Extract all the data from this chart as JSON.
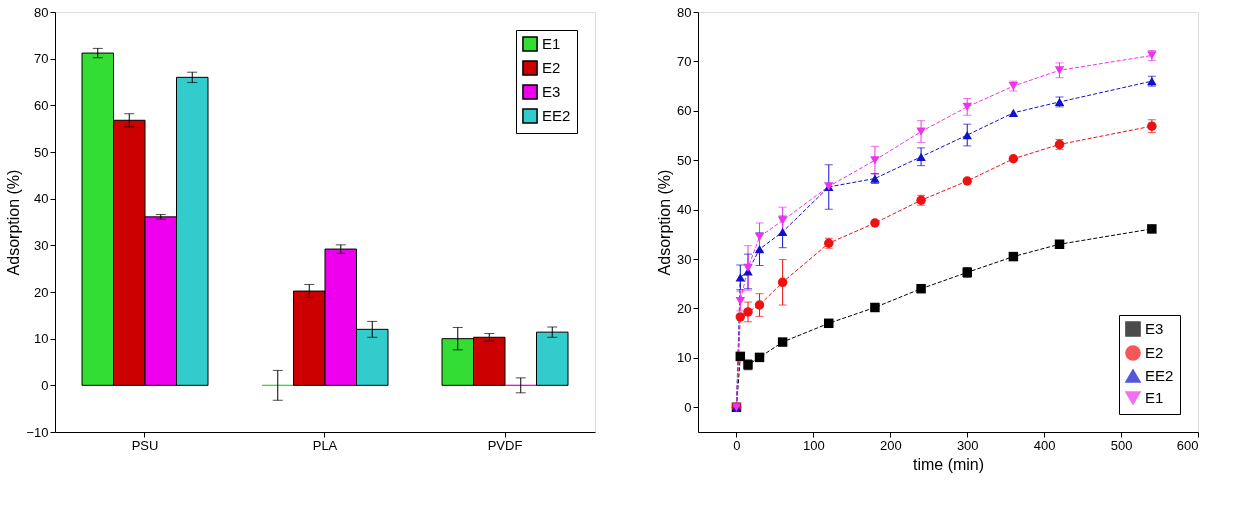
{
  "chart_data": [
    {
      "type": "bar",
      "ylabel": "Adsorption (%)",
      "categories": [
        "PSU",
        "PLA",
        "PVDF"
      ],
      "ylim": [
        -10,
        80
      ],
      "yticks": [
        -10,
        0,
        10,
        20,
        30,
        40,
        50,
        60,
        70,
        80
      ],
      "grid": false,
      "legend": "top right",
      "series": [
        {
          "name": "E1",
          "color": "#33dd33",
          "values": [
            71.2,
            0,
            10
          ],
          "errors": [
            1,
            3.2,
            2.4
          ]
        },
        {
          "name": "E2",
          "color": "#cc0000",
          "values": [
            56.8,
            20.2,
            10.3
          ],
          "errors": [
            1.4,
            1.4,
            0.8
          ]
        },
        {
          "name": "E3",
          "color": "#ee00ee",
          "values": [
            36.1,
            29.2,
            0
          ],
          "errors": [
            0.5,
            0.9,
            1.6
          ]
        },
        {
          "name": "EE2",
          "color": "#33cccc",
          "values": [
            66,
            12,
            11.4
          ],
          "errors": [
            1.1,
            1.7,
            1.1
          ]
        }
      ]
    },
    {
      "type": "line",
      "xlabel": "time (min)",
      "ylabel": "Adsorption (%)",
      "x": [
        0,
        5,
        15,
        30,
        60,
        120,
        180,
        240,
        300,
        360,
        420,
        540
      ],
      "xlim": [
        -50,
        600
      ],
      "xticks": [
        0,
        100,
        200,
        300,
        400,
        500,
        600
      ],
      "ylim": [
        -5,
        80
      ],
      "yticks": [
        0,
        10,
        20,
        30,
        40,
        50,
        60,
        70,
        80
      ],
      "grid": false,
      "legend": "bottom right",
      "line_style": "dashed",
      "series": [
        {
          "name": "E3",
          "color": "#000000",
          "marker": "square",
          "values": [
            0,
            10.3,
            8.6,
            10.1,
            13.2,
            17,
            20.2,
            24,
            27.3,
            30.5,
            33,
            36.1
          ],
          "errors": [
            null,
            null,
            1,
            null,
            null,
            null,
            null,
            null,
            1,
            null,
            null,
            null
          ]
        },
        {
          "name": "E2",
          "color": "#ee1111",
          "marker": "circle",
          "values": [
            0,
            18.3,
            19.3,
            20.7,
            25.3,
            33.2,
            37.3,
            41.9,
            45.8,
            50.3,
            53.2,
            56.9
          ],
          "errors": [
            null,
            null,
            2,
            2.3,
            4.6,
            1,
            null,
            1,
            null,
            null,
            1,
            1.3
          ]
        },
        {
          "name": "EE2",
          "color": "#1111cc",
          "marker": "triangle-up",
          "values": [
            0,
            26.3,
            27.5,
            32,
            35.5,
            44.6,
            46.3,
            50.7,
            55.1,
            59.6,
            61.8,
            66
          ],
          "errors": [
            null,
            2.5,
            3.5,
            3.3,
            3.2,
            4.5,
            1,
            1.8,
            2.2,
            null,
            1,
            1
          ]
        },
        {
          "name": "E1",
          "color": "#ee33ee",
          "marker": "triangle-down",
          "values": [
            0,
            21.5,
            28.2,
            34.5,
            37.8,
            44.7,
            50,
            55.8,
            60.8,
            65,
            68.2,
            71.2
          ],
          "errors": [
            null,
            2,
            4.5,
            2.8,
            2.7,
            null,
            2.8,
            2.2,
            1.7,
            1,
            1.5,
            1
          ]
        }
      ]
    }
  ]
}
